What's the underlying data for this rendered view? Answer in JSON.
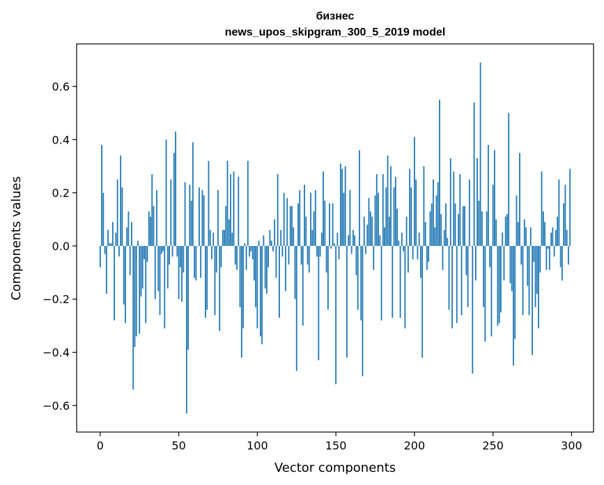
{
  "chart_data": {
    "type": "bar",
    "title": "бизнес",
    "subtitle": "news_upos_skipgram_300_5_2019 model",
    "xlabel": "Vector components",
    "ylabel": "Components values",
    "xlim": [
      -15,
      314
    ],
    "ylim": [
      -0.7,
      0.76
    ],
    "xticks": [
      0,
      50,
      100,
      150,
      200,
      250,
      300
    ],
    "xtick_labels": [
      "0",
      "50",
      "100",
      "150",
      "200",
      "250",
      "300"
    ],
    "yticks": [
      -0.6,
      -0.4,
      -0.2,
      0.0,
      0.2,
      0.4,
      0.6
    ],
    "ytick_labels": [
      "−0.6",
      "−0.4",
      "−0.2",
      "0.0",
      "0.2",
      "0.4",
      "0.6"
    ],
    "grid": false,
    "bar_color": "#1f77b4",
    "x_start": 0,
    "values": [
      -0.08,
      0.38,
      0.2,
      -0.03,
      -0.18,
      0.06,
      0.01,
      0.01,
      0.09,
      -0.28,
      0.05,
      0.25,
      -0.04,
      0.34,
      0.22,
      -0.22,
      -0.29,
      0.07,
      0.13,
      -0.11,
      0.09,
      -0.54,
      -0.38,
      -0.34,
      0.02,
      -0.33,
      -0.19,
      -0.16,
      -0.05,
      -0.29,
      -0.06,
      0.13,
      0.11,
      0.27,
      0.15,
      -0.2,
      0.21,
      -0.17,
      -0.26,
      -0.03,
      -0.02,
      -0.31,
      0.4,
      -0.16,
      -0.07,
      0.25,
      -0.04,
      0.35,
      0.43,
      -0.04,
      -0.2,
      -0.08,
      -0.21,
      -0.1,
      0.24,
      -0.63,
      -0.39,
      0.23,
      0.17,
      0.39,
      -0.12,
      -0.13,
      0.0,
      0.22,
      -0.12,
      0.21,
      0.19,
      -0.27,
      -0.24,
      0.32,
      0.06,
      -0.05,
      0.05,
      -0.26,
      -0.1,
      0.21,
      -0.32,
      -0.08,
      0.06,
      0.06,
      0.15,
      0.32,
      0.1,
      0.27,
      0.05,
      0.28,
      -0.07,
      -0.09,
      0.26,
      -0.23,
      -0.42,
      -0.31,
      0.01,
      -0.09,
      0.32,
      -0.04,
      -0.02,
      -0.05,
      -0.13,
      -0.23,
      -0.31,
      0.02,
      -0.34,
      -0.37,
      0.04,
      -0.16,
      -0.18,
      -0.08,
      0.06,
      0.02,
      -0.02,
      0.1,
      -0.12,
      0.27,
      -0.27,
      0.06,
      -0.04,
      0.2,
      -0.17,
      0.18,
      -0.07,
      0.15,
      0.15,
      0.07,
      -0.2,
      -0.47,
      0.16,
      0.21,
      -0.07,
      -0.3,
      0.23,
      0.11,
      -0.07,
      -0.1,
      0.2,
      0.06,
      0.13,
      0.21,
      -0.04,
      -0.43,
      -0.04,
      0.05,
      0.28,
      0.17,
      -0.1,
      -0.24,
      0.16,
      -0.01,
      0.16,
      0.01,
      -0.52,
      0.05,
      -0.05,
      0.31,
      0.29,
      0.2,
      0.3,
      -0.42,
      0.04,
      0.21,
      -0.03,
      0.06,
      0.04,
      -0.11,
      -0.24,
      0.36,
      -0.28,
      -0.49,
      0.11,
      -0.03,
      0.08,
      0.18,
      0.13,
      0.11,
      -0.09,
      0.19,
      0.27,
      0.2,
      0.04,
      -0.28,
      0.27,
      0.07,
      0.22,
      0.34,
      0.11,
      0.3,
      -0.27,
      0.22,
      0.26,
      0.14,
      0.02,
      -0.27,
      0.05,
      -0.02,
      -0.31,
      0.11,
      -0.1,
      0.29,
      0.22,
      -0.05,
      0.41,
      0.25,
      -0.05,
      0.05,
      -0.12,
      -0.42,
      0.3,
      0.09,
      -0.09,
      -0.06,
      0.13,
      0.16,
      0.25,
      0.07,
      0.19,
      0.24,
      0.55,
      0.12,
      -0.09,
      0.06,
      0.16,
      0.03,
      -0.24,
      0.33,
      -0.31,
      0.28,
      0.16,
      -0.29,
      0.12,
      0.27,
      -0.26,
      0.15,
      0.15,
      -0.11,
      -0.23,
      0.25,
      0.0,
      -0.48,
      0.54,
      -0.13,
      0.33,
      0.17,
      0.69,
      0.13,
      -0.23,
      -0.36,
      0.13,
      0.38,
      -0.08,
      -0.34,
      0.23,
      0.36,
      0.1,
      -0.3,
      -0.29,
      -0.25,
      0.05,
      -0.13,
      0.11,
      0.12,
      0.5,
      -0.14,
      -0.17,
      -0.45,
      -0.35,
      0.19,
      0.09,
      0.35,
      -0.07,
      -0.26,
      0.1,
      0.07,
      -0.15,
      -0.26,
      0.07,
      -0.41,
      -0.06,
      -0.23,
      -0.18,
      -0.31,
      -0.1,
      0.28,
      0.13,
      0.09,
      -0.09,
      -0.01,
      -0.09,
      0.05,
      0.07,
      -0.04,
      0.06,
      0.11,
      0.25,
      -0.08,
      -0.13,
      0.16,
      0.23,
      0.06,
      -0.07,
      0.29
    ]
  }
}
